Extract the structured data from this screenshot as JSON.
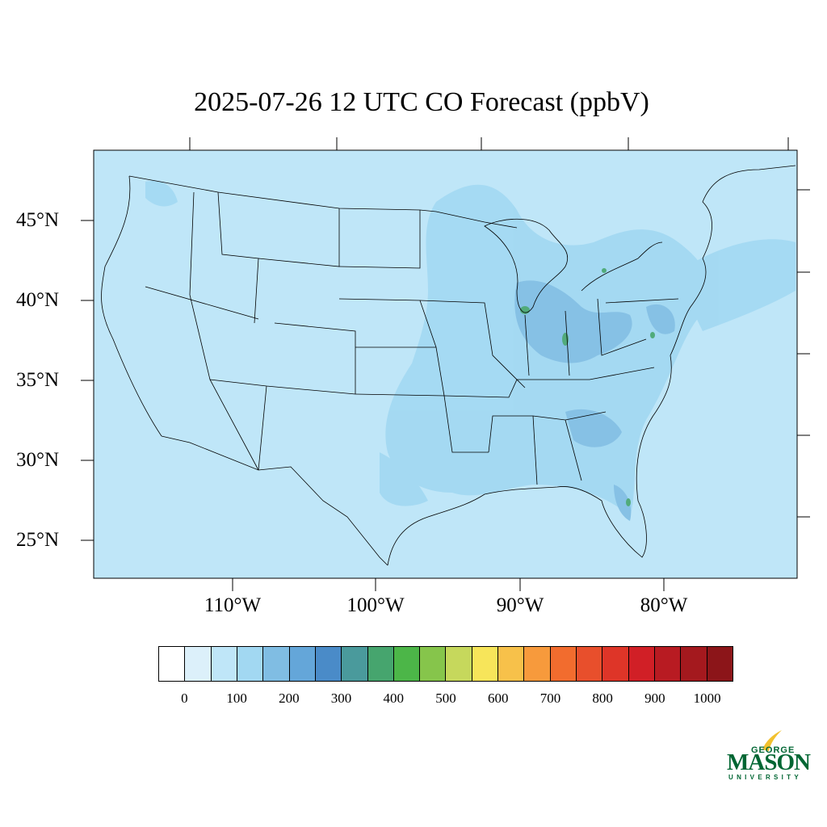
{
  "title": "2025-07-26 12 UTC CO Forecast (ppbV)",
  "lat_labels": [
    "45°N",
    "40°N",
    "35°N",
    "30°N",
    "25°N"
  ],
  "lon_labels": [
    "110°W",
    "100°W",
    "90°W",
    "80°W"
  ],
  "colorbar": {
    "ticks": [
      "0",
      "100",
      "200",
      "300",
      "400",
      "500",
      "600",
      "700",
      "800",
      "900",
      "1000"
    ],
    "colors": [
      "#ffffff",
      "#dcf0fa",
      "#bfe6f8",
      "#a2d8f2",
      "#80bde3",
      "#64a6d9",
      "#4a8bc8",
      "#4a9a9c",
      "#46a56e",
      "#4cb648",
      "#86c54b",
      "#c6d85c",
      "#f7e55a",
      "#f7c14a",
      "#f79a3c",
      "#f26c2e",
      "#e84f2c",
      "#de3528",
      "#d11f26",
      "#b81b22",
      "#a4191e",
      "#8c1519"
    ]
  },
  "logo": {
    "line1": "GEORGE",
    "line2": "MASON",
    "line3": "UNIVERSITY",
    "color": "#006633",
    "accent": "#f2c12e"
  },
  "colors": {
    "background_field": "#bfe6f8",
    "elevated_field": "#a2d8f2",
    "high_field": "#80bde3",
    "hotspot": "#46a56e"
  }
}
